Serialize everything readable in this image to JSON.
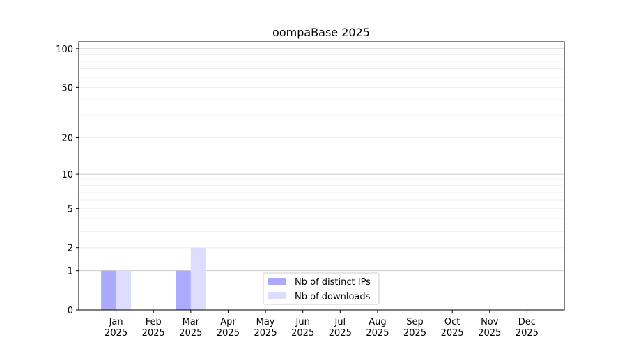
{
  "chart_data": {
    "type": "bar",
    "title": "oompaBase 2025",
    "xlabel": "",
    "ylabel": "",
    "y_scale": "log(1+y)",
    "ylim": [
      0,
      113
    ],
    "categories": [
      [
        "Jan",
        "2025"
      ],
      [
        "Feb",
        "2025"
      ],
      [
        "Mar",
        "2025"
      ],
      [
        "Apr",
        "2025"
      ],
      [
        "May",
        "2025"
      ],
      [
        "Jun",
        "2025"
      ],
      [
        "Jul",
        "2025"
      ],
      [
        "Aug",
        "2025"
      ],
      [
        "Sep",
        "2025"
      ],
      [
        "Oct",
        "2025"
      ],
      [
        "Nov",
        "2025"
      ],
      [
        "Dec",
        "2025"
      ]
    ],
    "yticks": [
      0,
      1,
      2,
      5,
      10,
      20,
      50,
      100
    ],
    "ytick_labels": [
      "0",
      "1",
      "2",
      "5",
      "10",
      "20",
      "50",
      "100"
    ],
    "grid_major": [
      1,
      10,
      100
    ],
    "grid_minor": [
      2,
      3,
      4,
      5,
      6,
      7,
      8,
      9,
      20,
      30,
      40,
      50,
      60,
      70,
      80,
      90
    ],
    "grid": true,
    "legend_placement": "lower-center",
    "series": [
      {
        "name": "Nb of distinct IPs",
        "color": "#aaaaff",
        "values": [
          1,
          0,
          1,
          0,
          0,
          0,
          0,
          0,
          0,
          0,
          0,
          0
        ]
      },
      {
        "name": "Nb of downloads",
        "color": "#ddddff",
        "values": [
          1,
          0,
          2,
          0,
          0,
          0,
          0,
          0,
          0,
          0,
          0,
          0
        ]
      }
    ]
  }
}
